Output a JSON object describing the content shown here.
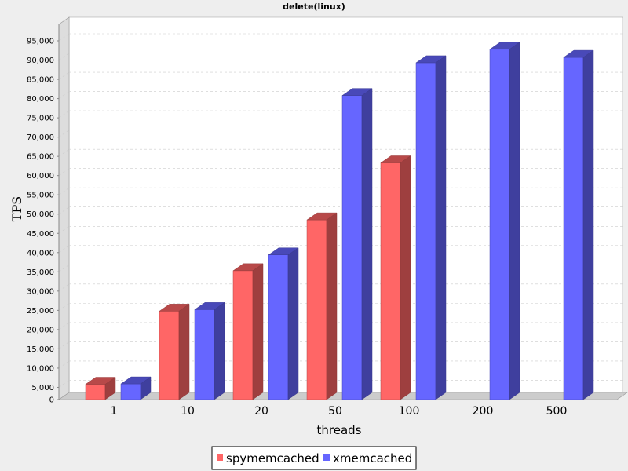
{
  "chart_data": {
    "type": "bar",
    "title": "delete(linux)",
    "xlabel": "threads",
    "ylabel": "TPS",
    "categories": [
      "1",
      "10",
      "20",
      "50",
      "100",
      "200",
      "500"
    ],
    "series": [
      {
        "name": "spymemcached",
        "color": "#ff6666",
        "values": [
          5800,
          24800,
          35300,
          48500,
          63300,
          null,
          null
        ]
      },
      {
        "name": "xmemcached",
        "color": "#6666ff",
        "values": [
          5900,
          25200,
          39400,
          80800,
          89300,
          92800,
          90700
        ]
      }
    ],
    "ylim": [
      0,
      95000
    ],
    "yticks": [
      0,
      5000,
      10000,
      15000,
      20000,
      25000,
      30000,
      35000,
      40000,
      45000,
      50000,
      55000,
      60000,
      65000,
      70000,
      75000,
      80000,
      85000,
      90000,
      95000
    ],
    "ytick_labels": [
      "0",
      "5,000",
      "10,000",
      "15,000",
      "20,000",
      "25,000",
      "30,000",
      "35,000",
      "40,000",
      "45,000",
      "50,000",
      "55,000",
      "60,000",
      "65,000",
      "70,000",
      "75,000",
      "80,000",
      "85,000",
      "90,000",
      "95,000"
    ],
    "grid": true,
    "legend_position": "bottom",
    "background": "#eeeeee",
    "plot_background": "#ffffff"
  }
}
